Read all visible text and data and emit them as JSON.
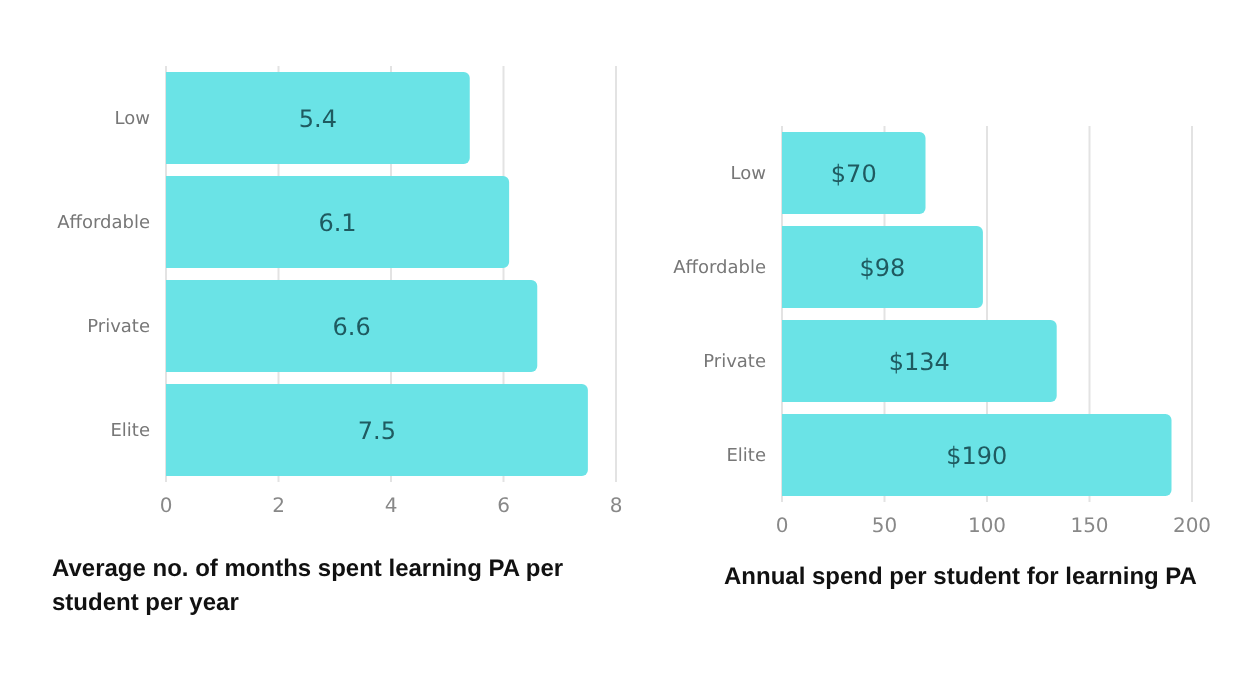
{
  "chart_data": [
    {
      "type": "bar",
      "orientation": "horizontal",
      "title": "Average no. of months spent learning PA per student per year",
      "categories": [
        "Low",
        "Affordable",
        "Private",
        "Elite"
      ],
      "values": [
        5.4,
        6.1,
        6.6,
        7.5
      ],
      "color": "#6ae3e6",
      "xlim": [
        0,
        8
      ],
      "xticks": [
        0,
        2,
        4,
        6,
        8
      ],
      "grid": "x",
      "data_labels": true
    },
    {
      "type": "bar",
      "orientation": "horizontal",
      "title": "Annual spend per student for learning PA",
      "categories": [
        "Low",
        "Affordable",
        "Private",
        "Elite"
      ],
      "values": [
        70,
        98,
        134,
        190
      ],
      "value_labels": [
        "$70",
        "$98",
        "$134",
        "$190"
      ],
      "color": "#6ae3e6",
      "xlim": [
        0,
        200
      ],
      "xticks": [
        0,
        50,
        100,
        150,
        200
      ],
      "grid": "x"
    }
  ]
}
